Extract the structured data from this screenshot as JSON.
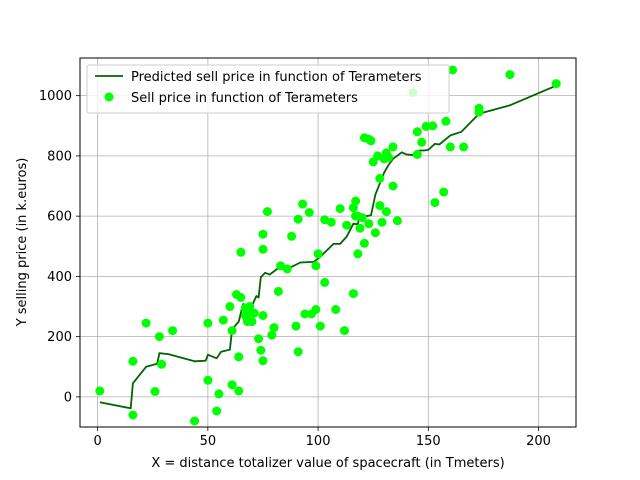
{
  "chart_data": {
    "type": "scatter",
    "title": "",
    "xlabel": "X = distance totalizer value of spacecraft (in Tmeters)",
    "ylabel": "Y selling price (in k.euros)",
    "xlim": [
      -8,
      217
    ],
    "ylim": [
      -100,
      1125
    ],
    "xticks": [
      0,
      50,
      100,
      150,
      200
    ],
    "yticks": [
      0,
      200,
      400,
      600,
      800,
      1000
    ],
    "grid": true,
    "legend_position": "top-left",
    "series": [
      {
        "name": "Predicted sell price in function of Terameters",
        "kind": "line",
        "color": "#006400",
        "points": [
          [
            1,
            -18
          ],
          [
            15,
            -38
          ],
          [
            16,
            45
          ],
          [
            22,
            100
          ],
          [
            27,
            110
          ],
          [
            28,
            145
          ],
          [
            32,
            142
          ],
          [
            44,
            118
          ],
          [
            49,
            120
          ],
          [
            50,
            140
          ],
          [
            54,
            128
          ],
          [
            56,
            150
          ],
          [
            60,
            157
          ],
          [
            61,
            224
          ],
          [
            62,
            233
          ],
          [
            64,
            250
          ],
          [
            66,
            308
          ],
          [
            70,
            302
          ],
          [
            72,
            335
          ],
          [
            73,
            330
          ],
          [
            74,
            397
          ],
          [
            76,
            412
          ],
          [
            78,
            406
          ],
          [
            82,
            428
          ],
          [
            86,
            425
          ],
          [
            92,
            446
          ],
          [
            98,
            448
          ],
          [
            101,
            465
          ],
          [
            107,
            508
          ],
          [
            110,
            508
          ],
          [
            113,
            532
          ],
          [
            116,
            575
          ],
          [
            118,
            573
          ],
          [
            119,
            605
          ],
          [
            121,
            603
          ],
          [
            122,
            600
          ],
          [
            124,
            603
          ],
          [
            126,
            672
          ],
          [
            130,
            745
          ],
          [
            132,
            770
          ],
          [
            134,
            790
          ],
          [
            138,
            812
          ],
          [
            140,
            805
          ],
          [
            143,
            803
          ],
          [
            146,
            818
          ],
          [
            148,
            818
          ],
          [
            150,
            820
          ],
          [
            153,
            840
          ],
          [
            155,
            838
          ],
          [
            160,
            868
          ],
          [
            165,
            880
          ],
          [
            173,
            940
          ],
          [
            187,
            968
          ],
          [
            207,
            1030
          ]
        ]
      },
      {
        "name": "Sell price in function of Terameters",
        "kind": "scatter",
        "color": "#00ff00",
        "points": [
          [
            1,
            20
          ],
          [
            16,
            118
          ],
          [
            16,
            -60
          ],
          [
            22,
            245
          ],
          [
            26,
            18
          ],
          [
            28,
            200
          ],
          [
            29,
            108
          ],
          [
            34,
            220
          ],
          [
            44,
            -80
          ],
          [
            50,
            55
          ],
          [
            50,
            245
          ],
          [
            54,
            -47
          ],
          [
            55,
            10
          ],
          [
            57,
            255
          ],
          [
            60,
            300
          ],
          [
            61,
            40
          ],
          [
            61,
            220
          ],
          [
            63,
            340
          ],
          [
            64,
            20
          ],
          [
            64,
            133
          ],
          [
            65,
            330
          ],
          [
            65,
            480
          ],
          [
            67,
            295
          ],
          [
            67,
            270
          ],
          [
            68,
            260
          ],
          [
            68,
            250
          ],
          [
            68,
            285
          ],
          [
            69,
            300
          ],
          [
            70,
            250
          ],
          [
            71,
            278
          ],
          [
            73,
            193
          ],
          [
            74,
            155
          ],
          [
            75,
            540
          ],
          [
            75,
            490
          ],
          [
            75,
            120
          ],
          [
            75,
            270
          ],
          [
            77,
            615
          ],
          [
            79,
            205
          ],
          [
            80,
            230
          ],
          [
            82,
            350
          ],
          [
            83,
            435
          ],
          [
            86,
            425
          ],
          [
            88,
            533
          ],
          [
            90,
            235
          ],
          [
            91,
            590
          ],
          [
            91,
            150
          ],
          [
            93,
            640
          ],
          [
            94,
            275
          ],
          [
            96,
            612
          ],
          [
            97,
            275
          ],
          [
            99,
            290
          ],
          [
            99,
            435
          ],
          [
            100,
            475
          ],
          [
            101,
            235
          ],
          [
            103,
            588
          ],
          [
            103,
            380
          ],
          [
            106,
            580
          ],
          [
            108,
            290
          ],
          [
            110,
            625
          ],
          [
            112,
            220
          ],
          [
            113,
            570
          ],
          [
            116,
            343
          ],
          [
            116,
            628
          ],
          [
            117,
            650
          ],
          [
            117,
            600
          ],
          [
            118,
            600
          ],
          [
            118,
            475
          ],
          [
            119,
            560
          ],
          [
            120,
            595
          ],
          [
            121,
            510
          ],
          [
            121,
            860
          ],
          [
            123,
            855
          ],
          [
            123,
            575
          ],
          [
            124,
            850
          ],
          [
            125,
            780
          ],
          [
            126,
            545
          ],
          [
            127,
            800
          ],
          [
            128,
            725
          ],
          [
            128,
            635
          ],
          [
            129,
            580
          ],
          [
            130,
            790
          ],
          [
            131,
            615
          ],
          [
            131,
            810
          ],
          [
            132,
            795
          ],
          [
            134,
            830
          ],
          [
            134,
            700
          ],
          [
            136,
            585
          ],
          [
            143,
            1010
          ],
          [
            145,
            880
          ],
          [
            145,
            805
          ],
          [
            147,
            845
          ],
          [
            149,
            898
          ],
          [
            152,
            900
          ],
          [
            153,
            645
          ],
          [
            157,
            680
          ],
          [
            158,
            915
          ],
          [
            160,
            830
          ],
          [
            161,
            1085
          ],
          [
            166,
            830
          ],
          [
            173,
            945
          ],
          [
            173,
            958
          ],
          [
            187,
            1070
          ],
          [
            208,
            1040
          ]
        ]
      }
    ]
  }
}
